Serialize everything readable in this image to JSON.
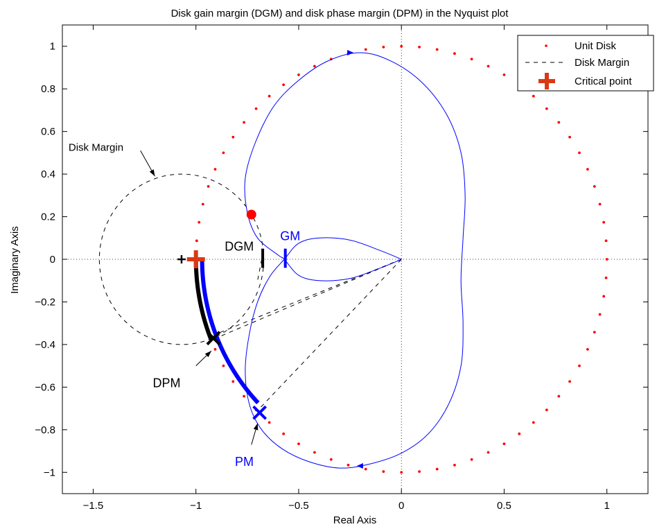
{
  "chart_data": {
    "type": "line",
    "title": "Disk gain margin (DGM) and disk phase margin (DPM) in the Nyquist plot",
    "xlabel": "Real Axis",
    "ylabel": "Imaginary Axis",
    "xlim": [
      -1.65,
      1.2
    ],
    "ylim": [
      -1.1,
      1.1
    ],
    "xticks": [
      -1.5,
      -1,
      -0.5,
      0,
      0.5,
      1
    ],
    "xtick_labels": [
      "−1.5",
      "−1",
      "−0.5",
      "0",
      "0.5",
      "1"
    ],
    "yticks": [
      -1,
      -0.8,
      -0.6,
      -0.4,
      -0.2,
      0,
      0.2,
      0.4,
      0.6,
      0.8,
      1
    ],
    "ytick_labels": [
      "−1",
      "−0.8",
      "−0.6",
      "−0.4",
      "−0.2",
      "0",
      "0.2",
      "0.4",
      "0.6",
      "0.8",
      "1"
    ],
    "grid": "dotted zero lines",
    "legend": {
      "placement": "top-right",
      "entries": [
        "Unit Disk",
        "Disk Margin",
        "Critical point"
      ]
    },
    "colors": {
      "nyquist": "#0000ff",
      "unit_disk": "#ff0000",
      "critical_point": "#d93a16",
      "disk_margin": "#000000",
      "dpm_arc": "#000000",
      "pm_arc": "#0000ff",
      "red_marker": "#ff0000"
    },
    "unit_disk": {
      "center": [
        0,
        0
      ],
      "radius": 1
    },
    "disk_margin_circle": {
      "center": [
        -1.07,
        0
      ],
      "radius": 0.4
    },
    "critical_point": [
      -1,
      0
    ],
    "small_plus": [
      -1.07,
      0
    ],
    "red_marker": [
      -0.73,
      0.21
    ],
    "nyquist_curve": [
      [
        0,
        0
      ],
      [
        -0.1,
        0.04
      ],
      [
        -0.25,
        0.09
      ],
      [
        -0.4,
        0.1
      ],
      [
        -0.5,
        0.075
      ],
      [
        -0.57,
        0
      ],
      [
        -0.64,
        -0.08
      ],
      [
        -0.7,
        -0.2
      ],
      [
        -0.74,
        -0.35
      ],
      [
        -0.76,
        -0.52
      ],
      [
        -0.74,
        -0.68
      ],
      [
        -0.68,
        -0.8
      ],
      [
        -0.58,
        -0.89
      ],
      [
        -0.45,
        -0.95
      ],
      [
        -0.3,
        -0.98
      ],
      [
        -0.15,
        -0.96
      ],
      [
        0,
        -0.91
      ],
      [
        0.13,
        -0.82
      ],
      [
        0.23,
        -0.68
      ],
      [
        0.29,
        -0.5
      ],
      [
        0.3,
        -0.3
      ],
      [
        0.29,
        -0.1
      ],
      [
        0.3,
        0.1
      ],
      [
        0.31,
        0.3
      ],
      [
        0.29,
        0.5
      ],
      [
        0.22,
        0.68
      ],
      [
        0.1,
        0.83
      ],
      [
        -0.05,
        0.93
      ],
      [
        -0.2,
        0.97
      ],
      [
        -0.36,
        0.93
      ],
      [
        -0.5,
        0.84
      ],
      [
        -0.62,
        0.72
      ],
      [
        -0.71,
        0.55
      ],
      [
        -0.76,
        0.38
      ],
      [
        -0.75,
        0.22
      ],
      [
        -0.7,
        0.1
      ],
      [
        -0.6,
        0.02
      ],
      [
        -0.57,
        0
      ],
      [
        -0.5,
        -0.075
      ],
      [
        -0.4,
        -0.1
      ],
      [
        -0.25,
        -0.09
      ],
      [
        -0.1,
        -0.04
      ],
      [
        0,
        0
      ]
    ],
    "direction_arrows": [
      [
        -0.25,
        0.97
      ],
      [
        -0.2,
        -0.97
      ]
    ],
    "dashed_lines": [
      [
        [
          0,
          0
        ],
        [
          -0.915,
          -0.375
        ]
      ],
      [
        [
          0,
          0
        ],
        [
          -0.695,
          -0.705
        ]
      ],
      [
        [
          0,
          0
        ],
        [
          -0.9,
          -0.35
        ]
      ],
      [
        [
          -0.68,
          0
        ],
        [
          -0.7,
          -0.1
        ]
      ]
    ],
    "dpm_arc": {
      "from_deg": 180,
      "to_deg": 202,
      "x_mark": [
        -0.915,
        -0.37
      ]
    },
    "pm_arc": {
      "from_deg": 180,
      "to_deg": 224,
      "radius": 0.97,
      "x_mark": [
        -0.69,
        -0.72
      ]
    },
    "dgm_tick": [
      -0.675,
      0
    ],
    "gm_tick": [
      -0.565,
      0
    ],
    "annotations": {
      "disk_margin": "Disk Margin",
      "dgm": "DGM",
      "gm": "GM",
      "dpm": "DPM",
      "pm": "PM"
    }
  }
}
